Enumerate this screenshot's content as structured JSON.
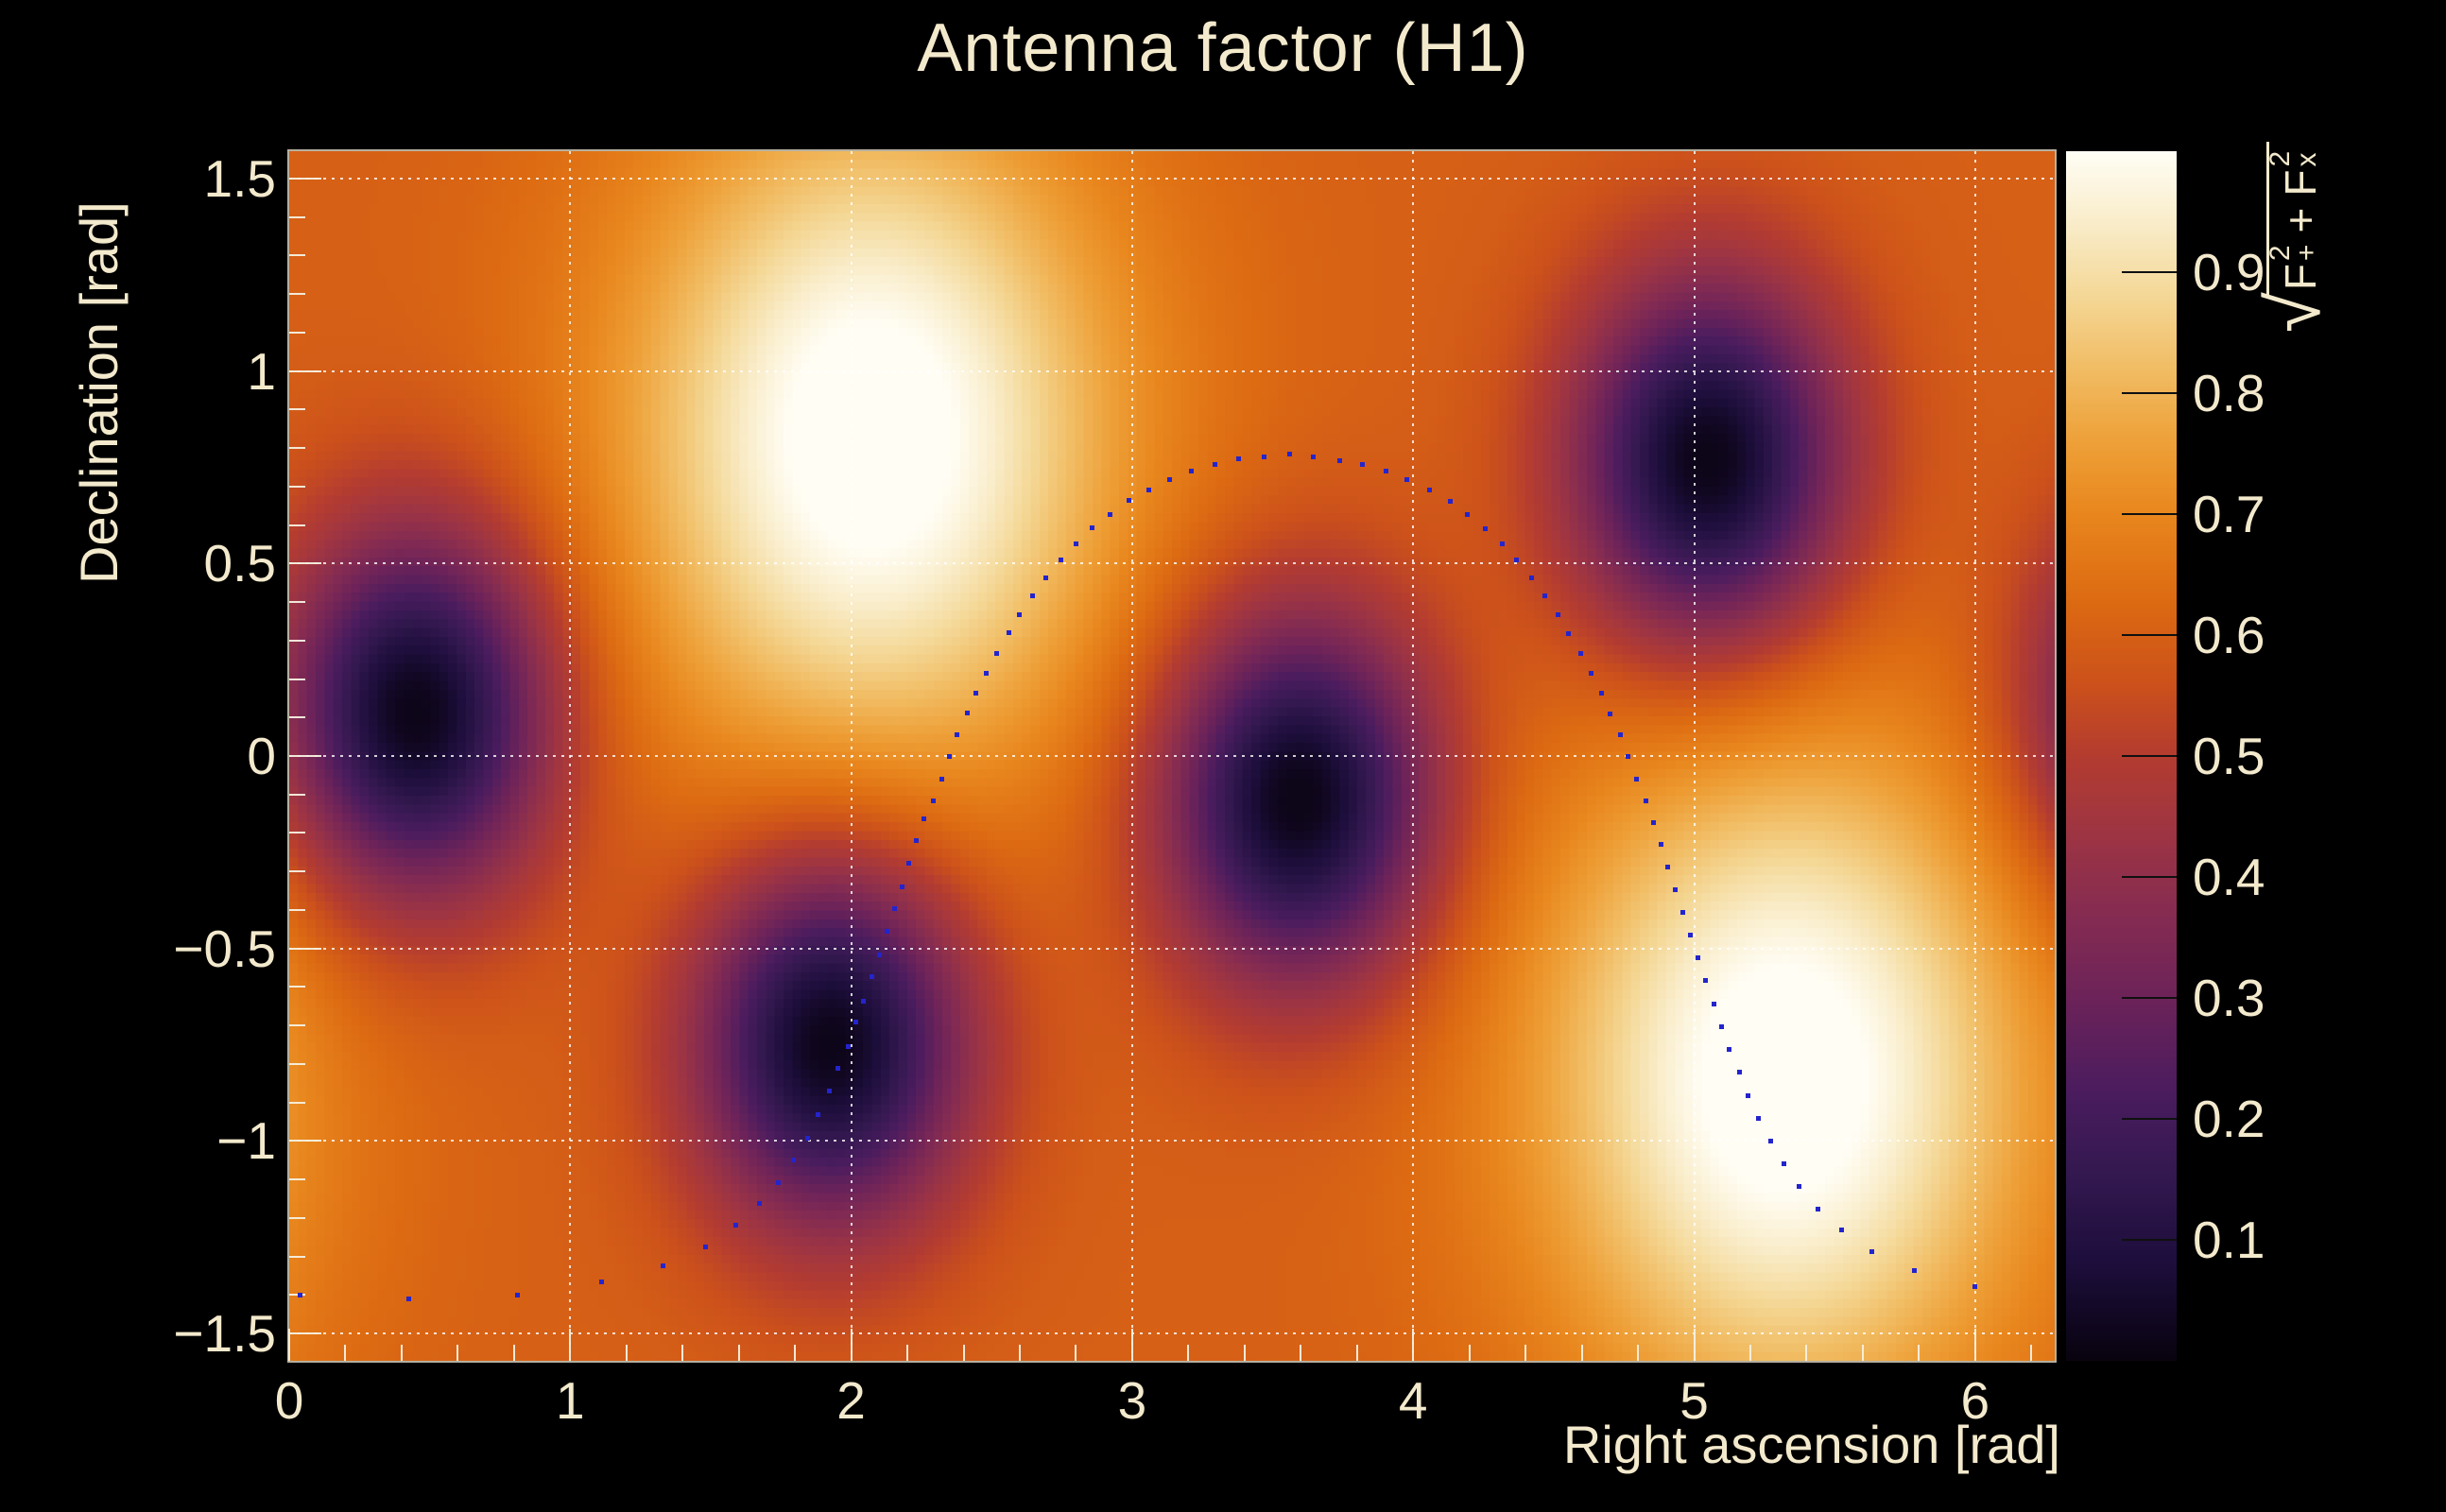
{
  "title": "Antenna factor (H1)",
  "colors": {
    "background": "#000000",
    "foreground_text": "#f3e9cc",
    "frame": "#f2ebd6",
    "grid_dots": "#ffffff",
    "trajectory_marker": "#2424cd",
    "colorbar_tick": "#101010"
  },
  "axes": {
    "x": {
      "title": "Right ascension [rad]",
      "min": 0,
      "max": 6.2832,
      "major_ticks": [
        0,
        1,
        2,
        3,
        4,
        5,
        6
      ],
      "tick_labels": [
        "0",
        "1",
        "2",
        "3",
        "4",
        "5",
        "6"
      ],
      "minor_tick_step": 0.2
    },
    "y": {
      "title": "Declination [rad]",
      "min": -1.5708,
      "max": 1.5708,
      "major_ticks": [
        1.5,
        1,
        0.5,
        0,
        -0.5,
        -1,
        -1.5
      ],
      "tick_labels": [
        "1.5",
        "1",
        "0.5",
        "0",
        "−0.5",
        "−1",
        "−1.5"
      ],
      "minor_tick_step": 0.1
    }
  },
  "colorbar": {
    "min": 0,
    "max": 1,
    "ticks": [
      0.9,
      0.8,
      0.7,
      0.6,
      0.5,
      0.4,
      0.3,
      0.2,
      0.1
    ],
    "tick_labels": [
      "0.9",
      "0.8",
      "0.7",
      "0.6",
      "0.5",
      "0.4",
      "0.3",
      "0.2",
      "0.1"
    ],
    "formula": {
      "plain": "√(F₊² + Fₓ²)",
      "radical": "√",
      "term1": {
        "base": "F",
        "sup": "2",
        "sub": "+"
      },
      "operator": "+",
      "term2": {
        "base": "F",
        "sup": "2",
        "sub": "x"
      }
    }
  },
  "chart_data": {
    "type": "heatmap",
    "title": "Antenna factor (H1)",
    "xlabel": "Right ascension [rad]",
    "ylabel": "Declination [rad]",
    "zlabel": "sqrt(F_plus^2 + F_cross^2)",
    "x_range": [
      0,
      6.2832
    ],
    "y_range": [
      -1.5708,
      1.5708
    ],
    "z_range": [
      0,
      1
    ],
    "grid": "white dotted lines at every major tick",
    "legend_position": "right-side vertical colorbar",
    "colormap_stops": [
      [
        0.0,
        "#090310"
      ],
      [
        0.08,
        "#1d0e3c"
      ],
      [
        0.15,
        "#33184f"
      ],
      [
        0.22,
        "#4a1c5e"
      ],
      [
        0.3,
        "#6d2359"
      ],
      [
        0.37,
        "#862c51"
      ],
      [
        0.44,
        "#9f3542"
      ],
      [
        0.5,
        "#b43c30"
      ],
      [
        0.56,
        "#cc511b"
      ],
      [
        0.63,
        "#dd6b12"
      ],
      [
        0.7,
        "#e8861d"
      ],
      [
        0.76,
        "#eea038"
      ],
      [
        0.82,
        "#f1bc63"
      ],
      [
        0.88,
        "#f4d795"
      ],
      [
        0.94,
        "#f9ecc8"
      ],
      [
        1.0,
        "#fffdf4"
      ]
    ],
    "maxima": [
      {
        "ra": 2.07,
        "dec": 0.83,
        "value": 1.0
      },
      {
        "ra": 5.32,
        "dec": -0.84,
        "value": 1.0
      }
    ],
    "minima": [
      {
        "ra": 0.45,
        "dec": 0.11,
        "value": 0.02
      },
      {
        "ra": 1.93,
        "dec": -0.74,
        "value": 0.02
      },
      {
        "ra": 3.59,
        "dec": -0.11,
        "value": 0.02
      },
      {
        "ra": 5.05,
        "dec": 0.76,
        "value": 0.02
      }
    ],
    "field_model": {
      "base": 0.6,
      "bumps": [
        {
          "ra": 2.07,
          "dec": 0.83,
          "amp": 0.45,
          "sigma": 0.6
        },
        {
          "ra": 5.32,
          "dec": -0.84,
          "amp": 0.45,
          "sigma": 0.6
        }
      ],
      "wells": [
        {
          "ra": 0.45,
          "dec": 0.11,
          "amp": 0.6,
          "sigma": 0.34
        },
        {
          "ra": 1.93,
          "dec": -0.74,
          "amp": 0.6,
          "sigma": 0.34
        },
        {
          "ra": 3.59,
          "dec": -0.11,
          "amp": 0.6,
          "sigma": 0.34
        },
        {
          "ra": 5.05,
          "dec": 0.76,
          "amp": 0.6,
          "sigma": 0.34
        }
      ],
      "bins_x": 200,
      "bins_y": 137,
      "value_clamp": [
        0.015,
        1.0
      ]
    },
    "trajectory": {
      "marker": "square",
      "marker_size_px": 5,
      "color": "#2424cd",
      "points": [
        [
          0.04,
          -1.4
        ],
        [
          0.424,
          -1.41
        ],
        [
          0.811,
          -1.4
        ],
        [
          1.113,
          -1.365
        ],
        [
          1.329,
          -1.324
        ],
        [
          1.48,
          -1.275
        ],
        [
          1.588,
          -1.219
        ],
        [
          1.672,
          -1.162
        ],
        [
          1.739,
          -1.108
        ],
        [
          1.796,
          -1.05
        ],
        [
          1.846,
          -0.993
        ],
        [
          1.883,
          -0.932
        ],
        [
          1.921,
          -0.871
        ],
        [
          1.954,
          -0.812
        ],
        [
          1.988,
          -0.754
        ],
        [
          2.018,
          -0.692
        ],
        [
          2.045,
          -0.636
        ],
        [
          2.072,
          -0.573
        ],
        [
          2.099,
          -0.516
        ],
        [
          2.126,
          -0.455
        ],
        [
          2.153,
          -0.396
        ],
        [
          2.18,
          -0.34
        ],
        [
          2.206,
          -0.279
        ],
        [
          2.233,
          -0.22
        ],
        [
          2.26,
          -0.164
        ],
        [
          2.291,
          -0.116
        ],
        [
          2.321,
          -0.059
        ],
        [
          2.348,
          0.0
        ],
        [
          2.378,
          0.054
        ],
        [
          2.412,
          0.111
        ],
        [
          2.445,
          0.163
        ],
        [
          2.482,
          0.215
        ],
        [
          2.519,
          0.267
        ],
        [
          2.56,
          0.321
        ],
        [
          2.6,
          0.368
        ],
        [
          2.647,
          0.417
        ],
        [
          2.694,
          0.462
        ],
        [
          2.745,
          0.509
        ],
        [
          2.799,
          0.551
        ],
        [
          2.859,
          0.593
        ],
        [
          2.92,
          0.627
        ],
        [
          2.987,
          0.664
        ],
        [
          3.058,
          0.692
        ],
        [
          3.132,
          0.719
        ],
        [
          3.209,
          0.741
        ],
        [
          3.296,
          0.758
        ],
        [
          3.38,
          0.771
        ],
        [
          3.468,
          0.778
        ],
        [
          3.559,
          0.783
        ],
        [
          3.646,
          0.778
        ],
        [
          3.737,
          0.768
        ],
        [
          3.818,
          0.758
        ],
        [
          3.902,
          0.741
        ],
        [
          3.979,
          0.719
        ],
        [
          4.057,
          0.692
        ],
        [
          4.131,
          0.662
        ],
        [
          4.194,
          0.627
        ],
        [
          4.255,
          0.59
        ],
        [
          4.316,
          0.551
        ],
        [
          4.369,
          0.509
        ],
        [
          4.42,
          0.462
        ],
        [
          4.467,
          0.417
        ],
        [
          4.514,
          0.368
        ],
        [
          4.554,
          0.319
        ],
        [
          4.595,
          0.267
        ],
        [
          4.635,
          0.215
        ],
        [
          4.669,
          0.163
        ],
        [
          4.702,
          0.109
        ],
        [
          4.736,
          0.054
        ],
        [
          4.766,
          0.0
        ],
        [
          4.796,
          -0.059
        ],
        [
          4.827,
          -0.116
        ],
        [
          4.854,
          -0.173
        ],
        [
          4.881,
          -0.23
        ],
        [
          4.907,
          -0.289
        ],
        [
          4.934,
          -0.348
        ],
        [
          4.961,
          -0.405
        ],
        [
          4.988,
          -0.464
        ],
        [
          5.015,
          -0.524
        ],
        [
          5.042,
          -0.583
        ],
        [
          5.069,
          -0.645
        ],
        [
          5.096,
          -0.704
        ],
        [
          5.126,
          -0.763
        ],
        [
          5.16,
          -0.82
        ],
        [
          5.193,
          -0.882
        ],
        [
          5.23,
          -0.941
        ],
        [
          5.271,
          -1.0
        ],
        [
          5.318,
          -1.06
        ],
        [
          5.375,
          -1.119
        ],
        [
          5.442,
          -1.176
        ],
        [
          5.526,
          -1.232
        ],
        [
          5.634,
          -1.287
        ],
        [
          5.785,
          -1.336
        ],
        [
          6.0,
          -1.378
        ]
      ]
    }
  }
}
